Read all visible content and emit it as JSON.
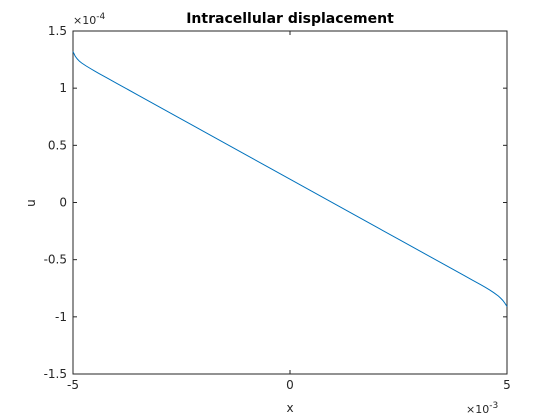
{
  "chart_data": {
    "type": "line",
    "title": "Intracellular displacement",
    "xlabel": "x",
    "ylabel": "u",
    "xlim": [
      -0.005,
      0.005
    ],
    "ylim": [
      -0.00015,
      0.00015
    ],
    "x_multiplier": "×10",
    "x_multiplier_exponent": "-3",
    "y_multiplier": "×10",
    "y_multiplier_exponent": "-4",
    "x_ticks": [
      {
        "value": -0.005,
        "label": "-5"
      },
      {
        "value": 0,
        "label": "0"
      },
      {
        "value": 0.005,
        "label": "5"
      }
    ],
    "y_ticks": [
      {
        "value": 0.00015,
        "label": "1.5"
      },
      {
        "value": 0.0001,
        "label": "1"
      },
      {
        "value": 5e-05,
        "label": "0.5"
      },
      {
        "value": 0,
        "label": "0"
      },
      {
        "value": -5e-05,
        "label": "-0.5"
      },
      {
        "value": -0.0001,
        "label": "-1"
      },
      {
        "value": -0.00015,
        "label": "-1.5"
      }
    ],
    "grid": false,
    "line_color": "#0072BD",
    "series": [
      {
        "x": [
          -0.005,
          -0.00495,
          -0.0049,
          -0.00485,
          -0.0048,
          -0.0047,
          -0.0046,
          -0.0045,
          -0.0044,
          -0.0042,
          -0.004,
          -0.0035,
          -0.003,
          -0.0025,
          -0.002,
          -0.0015,
          -0.001,
          -0.0005,
          0,
          0.0005,
          0.001,
          0.0015,
          0.002,
          0.0025,
          0.003,
          0.0035,
          0.004,
          0.0042,
          0.0044,
          0.0045,
          0.0046,
          0.0047,
          0.0048,
          0.00485,
          0.0049,
          0.00495,
          0.005
        ],
        "y": [
          0.000132,
          0.000128,
          0.0001255,
          0.0001235,
          0.000122,
          0.0001195,
          0.0001172,
          0.000115,
          0.0001128,
          0.0001086,
          0.0001044,
          9.39e-05,
          8.34e-05,
          7.29e-05,
          6.24e-05,
          5.19e-05,
          4.14e-05,
          3.09e-05,
          2.04e-05,
          9.9e-06,
          -6e-07,
          -1.11e-05,
          -2.16e-05,
          -3.21e-05,
          -4.26e-05,
          -5.31e-05,
          -6.36e-05,
          -6.78e-05,
          -7.2e-05,
          -7.42e-05,
          -7.65e-05,
          -7.9e-05,
          -8.18e-05,
          -8.35e-05,
          -8.55e-05,
          -8.8e-05,
          -9.1e-05
        ]
      }
    ]
  }
}
